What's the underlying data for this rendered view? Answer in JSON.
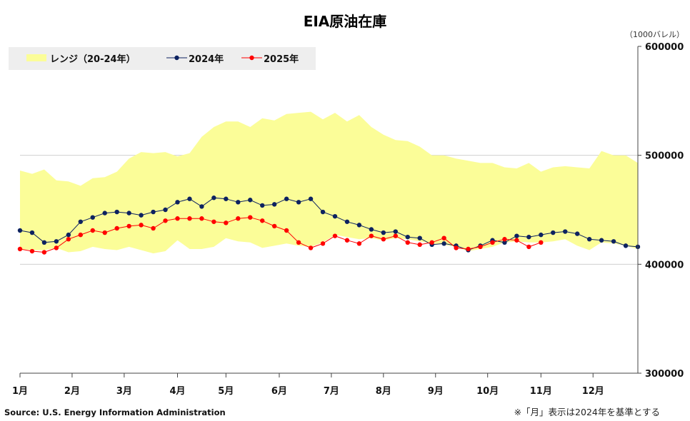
{
  "chart_data": {
    "type": "line",
    "title": "EIA原油在庫",
    "unit_label": "（1000バレル）",
    "ylim": [
      300000,
      600000
    ],
    "yticks": [
      {
        "value": 600000,
        "label": "600000"
      },
      {
        "value": 500000,
        "label": "500000"
      },
      {
        "value": 400000,
        "label": "400000"
      },
      {
        "value": 300000,
        "label": "300000"
      }
    ],
    "xlim": [
      0,
      51
    ],
    "month_ticks": [
      {
        "week": 0,
        "label": "1月"
      },
      {
        "week": 4.3,
        "label": "2月"
      },
      {
        "week": 8.6,
        "label": "3月"
      },
      {
        "week": 13,
        "label": "4月"
      },
      {
        "week": 17,
        "label": "5月"
      },
      {
        "week": 21.4,
        "label": "6月"
      },
      {
        "week": 25.7,
        "label": "7月"
      },
      {
        "week": 30,
        "label": "8月"
      },
      {
        "week": 34.3,
        "label": "9月"
      },
      {
        "week": 38.6,
        "label": "10月"
      },
      {
        "week": 43,
        "label": "11月"
      },
      {
        "week": 47.3,
        "label": "12月"
      }
    ],
    "grid_lines": [
      500000,
      400000
    ],
    "legend": {
      "range_label": "レンジ（20-24年）",
      "series_2024_label": "2024年",
      "series_2025_label": "2025年",
      "placement": "top-left"
    },
    "range": {
      "name": "レンジ（20-24年）",
      "color": "#fbfd98",
      "upper": [
        486000,
        483000,
        487000,
        477000,
        476000,
        472000,
        479000,
        480000,
        485000,
        497000,
        503000,
        502000,
        503000,
        499000,
        502000,
        517000,
        526000,
        531000,
        531000,
        526000,
        534000,
        532000,
        538000,
        539000,
        540000,
        533000,
        539000,
        531000,
        537000,
        526000,
        519000,
        514000,
        513000,
        508000,
        500000,
        500000,
        497000,
        495000,
        493000,
        493000,
        489000,
        488000,
        493000,
        485000,
        489000,
        490000,
        489000,
        488000,
        504000,
        500000,
        500000,
        493000
      ],
      "lower": [
        414000,
        413000,
        413000,
        415000,
        411000,
        412000,
        416000,
        414000,
        413000,
        416000,
        413000,
        410000,
        412000,
        422000,
        414000,
        414000,
        416000,
        424000,
        421000,
        420000,
        415000,
        417000,
        419000,
        417000,
        416000,
        420000,
        427000,
        425000,
        423000,
        424000,
        422000,
        424000,
        423000,
        421000,
        419000,
        418000,
        416000,
        412000,
        414000,
        416000,
        420000,
        421000,
        420000,
        420000,
        421000,
        423000,
        417000,
        413000,
        420000,
        419000,
        417000,
        414000
      ]
    },
    "series": [
      {
        "name": "2024年",
        "color": "#0d2260",
        "values": [
          431000,
          429000,
          420000,
          421000,
          427000,
          439000,
          443000,
          447000,
          448000,
          447000,
          445000,
          448000,
          450000,
          457000,
          460000,
          453000,
          461000,
          460000,
          457000,
          459000,
          454000,
          455000,
          460000,
          457000,
          460000,
          448000,
          444000,
          439000,
          436000,
          432000,
          429000,
          430000,
          425000,
          424000,
          418000,
          419000,
          417000,
          413000,
          417000,
          422000,
          420000,
          426000,
          425000,
          427000,
          429000,
          430000,
          428000,
          423000,
          422000,
          421000,
          417000,
          416000
        ]
      },
      {
        "name": "2025年",
        "color": "#ff0000",
        "values": [
          414000,
          412000,
          411000,
          415000,
          423000,
          427000,
          431000,
          429000,
          433000,
          435000,
          436000,
          433000,
          440000,
          442000,
          442000,
          442000,
          439000,
          438000,
          442000,
          443000,
          440000,
          435000,
          431000,
          420000,
          415000,
          419000,
          426000,
          422000,
          419000,
          426000,
          423000,
          426000,
          420000,
          418000,
          420000,
          424000,
          415000,
          414000,
          416000,
          420000,
          423000,
          422000,
          416000,
          420000
        ]
      }
    ],
    "source": "Source: U.S. Energy Information Administration",
    "note": "※「月」表示は2024年を基準とする"
  }
}
